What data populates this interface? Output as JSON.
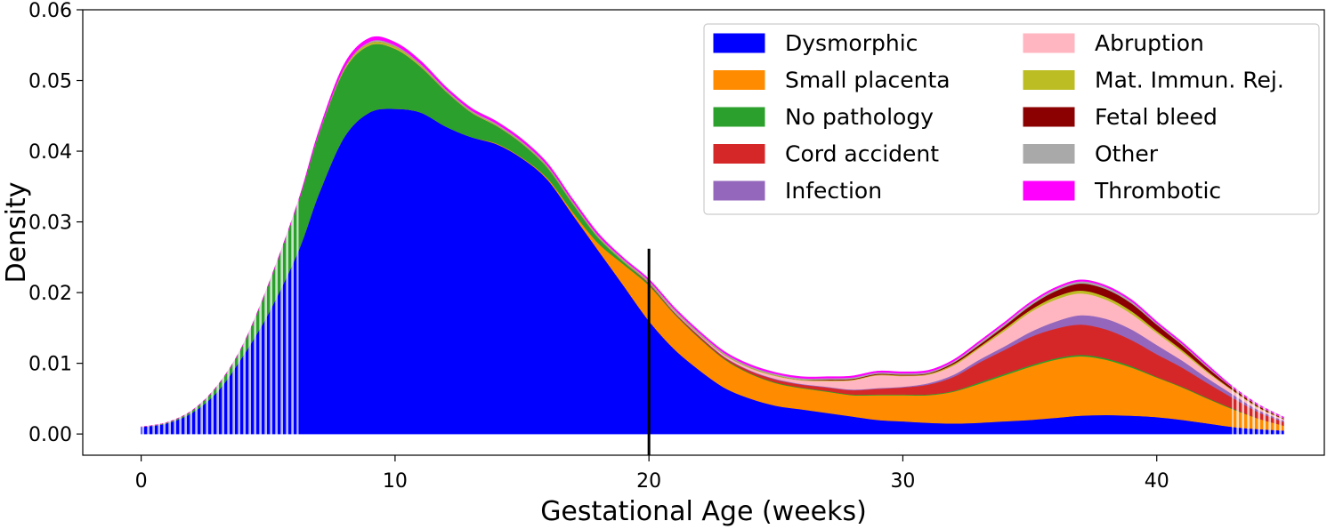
{
  "chart_data": {
    "type": "area",
    "stacked": true,
    "xlabel": "Gestational Age (weeks)",
    "ylabel": "Density",
    "xlim": [
      -2.3,
      46.6
    ],
    "ylim": [
      -0.003,
      0.06
    ],
    "xticks": [
      0,
      10,
      20,
      30,
      40
    ],
    "yticks": [
      0.0,
      0.01,
      0.02,
      0.03,
      0.04,
      0.05,
      0.06
    ],
    "ytick_labels": [
      "0.00",
      "0.01",
      "0.02",
      "0.03",
      "0.04",
      "0.05",
      "0.06"
    ],
    "grid": false,
    "legend_position": "top-right",
    "vertical_line": {
      "x": 20,
      "y_top": 0.0262
    },
    "faded_regions": [
      [
        0,
        6.2
      ],
      [
        43,
        45
      ]
    ],
    "x": [
      0,
      1,
      2,
      3,
      4,
      5,
      6.2,
      7,
      8,
      9,
      10,
      11,
      12,
      13,
      14,
      15,
      16,
      17,
      18,
      19,
      20,
      21,
      22,
      23,
      24,
      25,
      26,
      27,
      28,
      29,
      30,
      31,
      32,
      33,
      34,
      35,
      36,
      37,
      38,
      39,
      40,
      41,
      42,
      43,
      44,
      45
    ],
    "series": [
      {
        "name": "Dysmorphic",
        "color": "#0000ff",
        "values": [
          0.001,
          0.0015,
          0.003,
          0.006,
          0.011,
          0.017,
          0.026,
          0.034,
          0.042,
          0.0455,
          0.046,
          0.0455,
          0.0435,
          0.042,
          0.041,
          0.039,
          0.036,
          0.031,
          0.026,
          0.021,
          0.016,
          0.012,
          0.009,
          0.0065,
          0.005,
          0.004,
          0.0035,
          0.003,
          0.0025,
          0.002,
          0.0018,
          0.0016,
          0.0015,
          0.0016,
          0.0018,
          0.002,
          0.0023,
          0.0026,
          0.0027,
          0.0026,
          0.0024,
          0.002,
          0.0015,
          0.001,
          0.0007,
          0.0005
        ]
      },
      {
        "name": "Small placenta",
        "color": "#ff8c00",
        "values": [
          0,
          0,
          0,
          0,
          0,
          0,
          0,
          0,
          0,
          0,
          0,
          0,
          0,
          0,
          0.0001,
          0.0001,
          0.0002,
          0.0004,
          0.001,
          0.003,
          0.005,
          0.005,
          0.0045,
          0.004,
          0.0035,
          0.0032,
          0.003,
          0.003,
          0.003,
          0.0035,
          0.0037,
          0.0039,
          0.0045,
          0.0055,
          0.0065,
          0.0075,
          0.0082,
          0.0084,
          0.0078,
          0.0068,
          0.0056,
          0.0046,
          0.0035,
          0.0025,
          0.0015,
          0.0007
        ]
      },
      {
        "name": "No pathology",
        "color": "#2ca02c",
        "values": [
          0,
          0.0001,
          0.0003,
          0.0008,
          0.0015,
          0.004,
          0.007,
          0.0085,
          0.0095,
          0.0095,
          0.0085,
          0.0065,
          0.005,
          0.0035,
          0.0025,
          0.002,
          0.0015,
          0.0012,
          0.0008,
          0.0004,
          0.0002,
          0.0001,
          0.0001,
          0.0001,
          0.0001,
          0.0001,
          0.0001,
          0.0001,
          0.0001,
          0.0001,
          0.0001,
          0.0001,
          0.0001,
          0.0002,
          0.0002,
          0.0002,
          0.0002,
          0.0002,
          0.0002,
          0.0002,
          0.0001,
          0.0001,
          0.0001,
          0.0001,
          0,
          0
        ]
      },
      {
        "name": "Cord accident",
        "color": "#d62728",
        "values": [
          0,
          0,
          0,
          0,
          0,
          0,
          0,
          0,
          0,
          0,
          0,
          0,
          0,
          0,
          0,
          0,
          0,
          0,
          0,
          0,
          0.0001,
          0.0001,
          0.0002,
          0.0002,
          0.0003,
          0.0004,
          0.0004,
          0.0005,
          0.0006,
          0.0008,
          0.001,
          0.0014,
          0.002,
          0.0028,
          0.0034,
          0.004,
          0.0042,
          0.0043,
          0.0041,
          0.0037,
          0.0032,
          0.0027,
          0.0021,
          0.0015,
          0.0009,
          0.0005
        ]
      },
      {
        "name": "Infection",
        "color": "#9467bd",
        "values": [
          0,
          0,
          0,
          0,
          0,
          0,
          0,
          0,
          0,
          0,
          0,
          0,
          0,
          0,
          0,
          0,
          0,
          0,
          0,
          0,
          0.0001,
          0.0001,
          0.0001,
          0.0001,
          0.0001,
          0.0001,
          0.0001,
          0.0001,
          0.0001,
          0.0001,
          0.0001,
          0.0002,
          0.0003,
          0.0004,
          0.0005,
          0.0007,
          0.001,
          0.0013,
          0.0015,
          0.0015,
          0.0013,
          0.001,
          0.0007,
          0.0005,
          0.0003,
          0.0002
        ]
      },
      {
        "name": "Abruption",
        "color": "#ffb6c1",
        "values": [
          0,
          0,
          0,
          0,
          0,
          0,
          0,
          0,
          0,
          0,
          0,
          0,
          0,
          0,
          0,
          0,
          0,
          0,
          0,
          0,
          0,
          0.0001,
          0.0001,
          0.0002,
          0.0003,
          0.0004,
          0.0005,
          0.0008,
          0.0013,
          0.0018,
          0.0015,
          0.0012,
          0.0013,
          0.0016,
          0.0022,
          0.0028,
          0.0031,
          0.0031,
          0.0027,
          0.0022,
          0.0017,
          0.0012,
          0.0008,
          0.0005,
          0.0003,
          0.0002
        ]
      },
      {
        "name": "Mat. Immun. Rej.",
        "color": "#bcbd22",
        "values": [
          0,
          0,
          0,
          0,
          0,
          0,
          0,
          0,
          0.0002,
          0.0003,
          0.0003,
          0.0002,
          0.0001,
          0.0001,
          0.0001,
          0.0001,
          0.0001,
          0.0001,
          0.0001,
          0.0001,
          0.0001,
          0.0001,
          0.0001,
          0.0001,
          0.0001,
          0.0001,
          0.0001,
          0.0001,
          0.0001,
          0.0001,
          0.0001,
          0.0001,
          0.0002,
          0.0002,
          0.0003,
          0.0003,
          0.0004,
          0.0004,
          0.0004,
          0.0004,
          0.0003,
          0.0003,
          0.0002,
          0.0001,
          0.0001,
          0
        ]
      },
      {
        "name": "Fetal bleed",
        "color": "#8b0000",
        "values": [
          0,
          0,
          0,
          0,
          0,
          0,
          0,
          0,
          0,
          0,
          0,
          0,
          0,
          0,
          0,
          0,
          0,
          0,
          0,
          0,
          0,
          0,
          0,
          0,
          0,
          0,
          0,
          0.0001,
          0.0001,
          0.0001,
          0.0001,
          0.0001,
          0.0002,
          0.0003,
          0.0004,
          0.0006,
          0.0008,
          0.001,
          0.0011,
          0.0011,
          0.0009,
          0.0007,
          0.0005,
          0.0003,
          0.0002,
          0.0001
        ]
      },
      {
        "name": "Other",
        "color": "#a9a9a9",
        "values": [
          0,
          0,
          0,
          0,
          0,
          0,
          0,
          0.0001,
          0.0001,
          0.0002,
          0.0002,
          0.0002,
          0.0002,
          0.0002,
          0.0002,
          0.0002,
          0.0002,
          0.0002,
          0.0002,
          0.0002,
          0.0002,
          0.0002,
          0.0002,
          0.0002,
          0.0002,
          0.0002,
          0.0002,
          0.0002,
          0.0002,
          0.0002,
          0.0002,
          0.0002,
          0.0002,
          0.0003,
          0.0003,
          0.0003,
          0.0003,
          0.0003,
          0.0003,
          0.0003,
          0.0002,
          0.0002,
          0.0002,
          0.0001,
          0.0001,
          0.0001
        ]
      },
      {
        "name": "Thrombotic",
        "color": "#ff00ff",
        "values": [
          0,
          0,
          0,
          0,
          0,
          0,
          0.0001,
          0.0003,
          0.0005,
          0.0005,
          0.0004,
          0.0004,
          0.0003,
          0.0003,
          0.0003,
          0.0003,
          0.0003,
          0.0003,
          0.0003,
          0.0002,
          0.0002,
          0.0002,
          0.0002,
          0.0002,
          0.0002,
          0.0002,
          0.0002,
          0.0002,
          0.0002,
          0.0002,
          0.0002,
          0.0002,
          0.0002,
          0.0002,
          0.0002,
          0.0002,
          0.0002,
          0.0002,
          0.0002,
          0.0002,
          0.0002,
          0.0002,
          0.0002,
          0.0001,
          0.0001,
          0.0001
        ]
      }
    ],
    "legend": {
      "columns": [
        [
          "Dysmorphic",
          "Small placenta",
          "No pathology",
          "Cord accident",
          "Infection"
        ],
        [
          "Abruption",
          "Mat. Immun. Rej.",
          "Fetal bleed",
          "Other",
          "Thrombotic"
        ]
      ]
    }
  }
}
